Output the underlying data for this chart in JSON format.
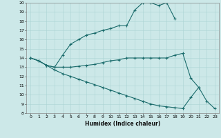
{
  "title": "",
  "xlabel": "Humidex (Indice chaleur)",
  "bg_color": "#cce8e8",
  "line_color": "#1a6b6b",
  "xlim": [
    -0.5,
    23.5
  ],
  "ylim": [
    8,
    20
  ],
  "xticks": [
    0,
    1,
    2,
    3,
    4,
    5,
    6,
    7,
    8,
    9,
    10,
    11,
    12,
    13,
    14,
    15,
    16,
    17,
    18,
    19,
    20,
    21,
    22,
    23
  ],
  "yticks": [
    8,
    9,
    10,
    11,
    12,
    13,
    14,
    15,
    16,
    17,
    18,
    19,
    20
  ],
  "line1_x": [
    0,
    1,
    2,
    3,
    4,
    5,
    6,
    7,
    8,
    9,
    10,
    11,
    12,
    13,
    14,
    15,
    16,
    17,
    18
  ],
  "line1_y": [
    14.0,
    13.7,
    13.2,
    13.0,
    14.3,
    15.5,
    16.0,
    16.5,
    16.7,
    17.0,
    17.2,
    17.5,
    17.5,
    19.2,
    20.0,
    20.0,
    19.7,
    20.0,
    18.3
  ],
  "line2_x": [
    0,
    1,
    2,
    3,
    4,
    5,
    6,
    7,
    8,
    9,
    10,
    11,
    12,
    13,
    14,
    15,
    16,
    17,
    18,
    19,
    20,
    21
  ],
  "line2_y": [
    14.0,
    13.7,
    13.2,
    13.0,
    13.0,
    13.0,
    13.1,
    13.2,
    13.3,
    13.5,
    13.7,
    13.8,
    14.0,
    14.0,
    14.0,
    14.0,
    14.0,
    14.0,
    14.3,
    14.5,
    11.8,
    10.8
  ],
  "line3_x": [
    0,
    1,
    2,
    3,
    4,
    5,
    6,
    7,
    8,
    9,
    10,
    11,
    12,
    13,
    14,
    15,
    16,
    17,
    18,
    19,
    20,
    21,
    22,
    23
  ],
  "line3_y": [
    14.0,
    13.7,
    13.2,
    12.7,
    12.3,
    12.0,
    11.7,
    11.4,
    11.1,
    10.8,
    10.5,
    10.2,
    9.9,
    9.6,
    9.3,
    9.0,
    8.8,
    8.7,
    8.6,
    8.5,
    9.7,
    10.8,
    9.3,
    8.5
  ]
}
